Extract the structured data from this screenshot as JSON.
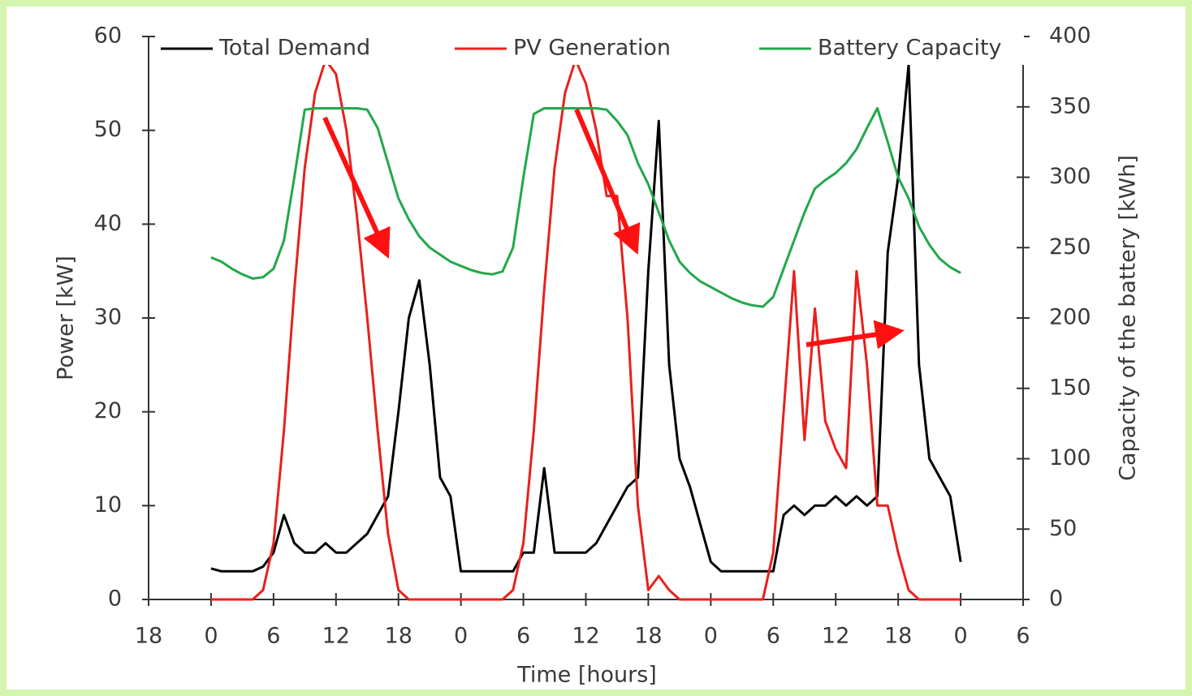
{
  "chart_data": {
    "type": "line",
    "x_label": "Time [hours]",
    "y_label": "Power [kW]",
    "y2_label": "Capacity of the battery [kWh]",
    "x": [
      0,
      1,
      2,
      3,
      4,
      5,
      6,
      7,
      8,
      9,
      10,
      11,
      12,
      13,
      14,
      15,
      16,
      17,
      18,
      19,
      20,
      21,
      22,
      23,
      24,
      25,
      26,
      27,
      28,
      29,
      30,
      31,
      32,
      33,
      34,
      35,
      36,
      37,
      38,
      39,
      40,
      41,
      42,
      43,
      44,
      45,
      46,
      47,
      48,
      49,
      50,
      51,
      52,
      53,
      54,
      55,
      56,
      57,
      58,
      59,
      60,
      61,
      62,
      63,
      64,
      65,
      66,
      67,
      68,
      69,
      70,
      71,
      72
    ],
    "xlim": [
      -6,
      78
    ],
    "xticks": [
      {
        "value": -6,
        "label": "18"
      },
      0,
      6,
      12,
      18,
      {
        "value": 24,
        "label": "0"
      },
      {
        "value": 30,
        "label": "6"
      },
      {
        "value": 36,
        "label": "12"
      },
      {
        "value": 42,
        "label": "18"
      },
      {
        "value": 48,
        "label": "0"
      },
      {
        "value": 54,
        "label": "6"
      },
      {
        "value": 60,
        "label": "12"
      },
      {
        "value": 66,
        "label": "18"
      },
      {
        "value": 72,
        "label": "0"
      },
      {
        "value": 78,
        "label": "6"
      }
    ],
    "ylim": [
      0,
      60
    ],
    "yticks": [
      0,
      10,
      20,
      30,
      40,
      50,
      60
    ],
    "y2lim": [
      0,
      400
    ],
    "y2ticks": [
      0,
      50,
      100,
      150,
      200,
      250,
      300,
      350,
      400
    ],
    "series": [
      {
        "name": "Total Demand",
        "color": "#000000",
        "values": [
          3.3,
          3,
          3,
          3,
          3,
          3.5,
          5,
          9,
          6,
          5,
          5,
          6,
          5,
          5,
          6,
          7,
          9,
          11,
          20,
          30,
          34,
          25,
          13,
          11,
          3,
          3,
          3,
          3,
          3,
          3,
          5,
          5,
          14,
          5,
          5,
          5,
          5,
          6,
          8,
          10,
          12,
          13,
          35,
          51,
          25,
          15,
          12,
          8,
          4,
          3,
          3,
          3,
          3,
          3,
          3,
          9,
          10,
          9,
          10,
          10,
          11,
          10,
          11,
          10,
          11,
          37,
          45,
          57,
          25,
          15,
          13,
          11,
          4
        ]
      },
      {
        "name": "PV Generation",
        "color": "#e8201c",
        "values": [
          0,
          0,
          0,
          0,
          0,
          1,
          6,
          18,
          33,
          46,
          54,
          57.5,
          56,
          50,
          41,
          30,
          18,
          7,
          1,
          0,
          0,
          0,
          0,
          0,
          0,
          0,
          0,
          0,
          0,
          1,
          6,
          18,
          33,
          46,
          54,
          57.5,
          55,
          50,
          43,
          43,
          30,
          10,
          1,
          2.5,
          1,
          0,
          0,
          0,
          0,
          0,
          0,
          0,
          0,
          0,
          5,
          20,
          35,
          17,
          31,
          19,
          16,
          14,
          35,
          25,
          10,
          10,
          5,
          1,
          0,
          0,
          0,
          0,
          0
        ]
      },
      {
        "name": "Battery Capacity",
        "color": "#22a84a",
        "axis": "y2",
        "values": [
          243,
          240,
          235,
          231,
          228,
          229,
          235,
          255,
          300,
          348,
          349,
          349,
          349,
          349,
          349,
          348,
          335,
          310,
          285,
          270,
          258,
          250,
          245,
          240,
          237,
          234,
          232,
          231,
          233,
          250,
          300,
          345,
          349,
          349,
          349,
          349,
          349,
          349,
          348,
          340,
          330,
          310,
          295,
          275,
          255,
          240,
          232,
          226,
          222,
          218,
          214,
          211,
          209,
          208,
          215,
          235,
          255,
          275,
          292,
          298,
          303,
          310,
          320,
          335,
          349,
          325,
          300,
          285,
          265,
          252,
          242,
          236,
          232
        ]
      }
    ]
  }
}
